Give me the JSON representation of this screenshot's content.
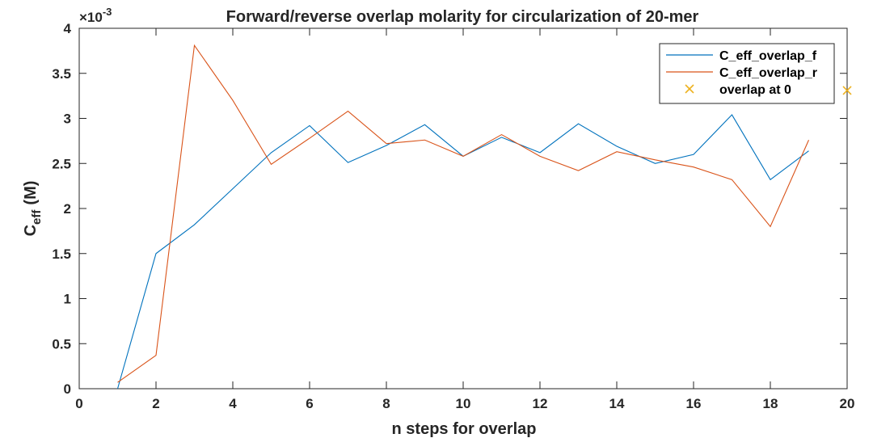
{
  "chart_data": {
    "type": "line",
    "title": "Forward/reverse overlap molarity for circularization of 20-mer",
    "xlabel": "n steps for overlap",
    "ylabel_main": "C",
    "ylabel_sub": "eff",
    "ylabel_unit": "(M)",
    "y_exponent_base": "×10",
    "y_exponent_power": "-3",
    "xlim": [
      0,
      20
    ],
    "ylim": [
      0,
      4
    ],
    "xticks": [
      "0",
      "2",
      "4",
      "6",
      "8",
      "10",
      "12",
      "14",
      "16",
      "18",
      "20"
    ],
    "yticks": [
      "0",
      "0.5",
      "1",
      "1.5",
      "2",
      "2.5",
      "3",
      "3.5",
      "4"
    ],
    "grid": false,
    "legend_position": "top-right",
    "series": [
      {
        "name": "C_eff_overlap_f",
        "color": "#0072BD",
        "marker": "line",
        "x": [
          1,
          2,
          3,
          4,
          5,
          6,
          7,
          8,
          9,
          10,
          11,
          12,
          13,
          14,
          15,
          16,
          17,
          18,
          19
        ],
        "y": [
          0.0,
          1.5,
          1.82,
          2.22,
          2.62,
          2.92,
          2.51,
          2.7,
          2.93,
          2.58,
          2.79,
          2.62,
          2.94,
          2.69,
          2.5,
          2.6,
          3.04,
          2.32,
          2.64
        ]
      },
      {
        "name": "C_eff_overlap_r",
        "color": "#D95319",
        "marker": "line",
        "x": [
          1,
          2,
          3,
          4,
          5,
          6,
          7,
          8,
          9,
          10,
          11,
          12,
          13,
          14,
          15,
          16,
          17,
          18,
          19
        ],
        "y": [
          0.07,
          0.37,
          3.81,
          3.2,
          2.49,
          2.78,
          3.08,
          2.72,
          2.76,
          2.58,
          2.82,
          2.58,
          2.42,
          2.63,
          2.54,
          2.46,
          2.32,
          1.8,
          2.76
        ]
      },
      {
        "name": "overlap at 0",
        "color": "#EDB120",
        "marker": "x",
        "x": [
          20
        ],
        "y": [
          3.31
        ]
      }
    ]
  }
}
